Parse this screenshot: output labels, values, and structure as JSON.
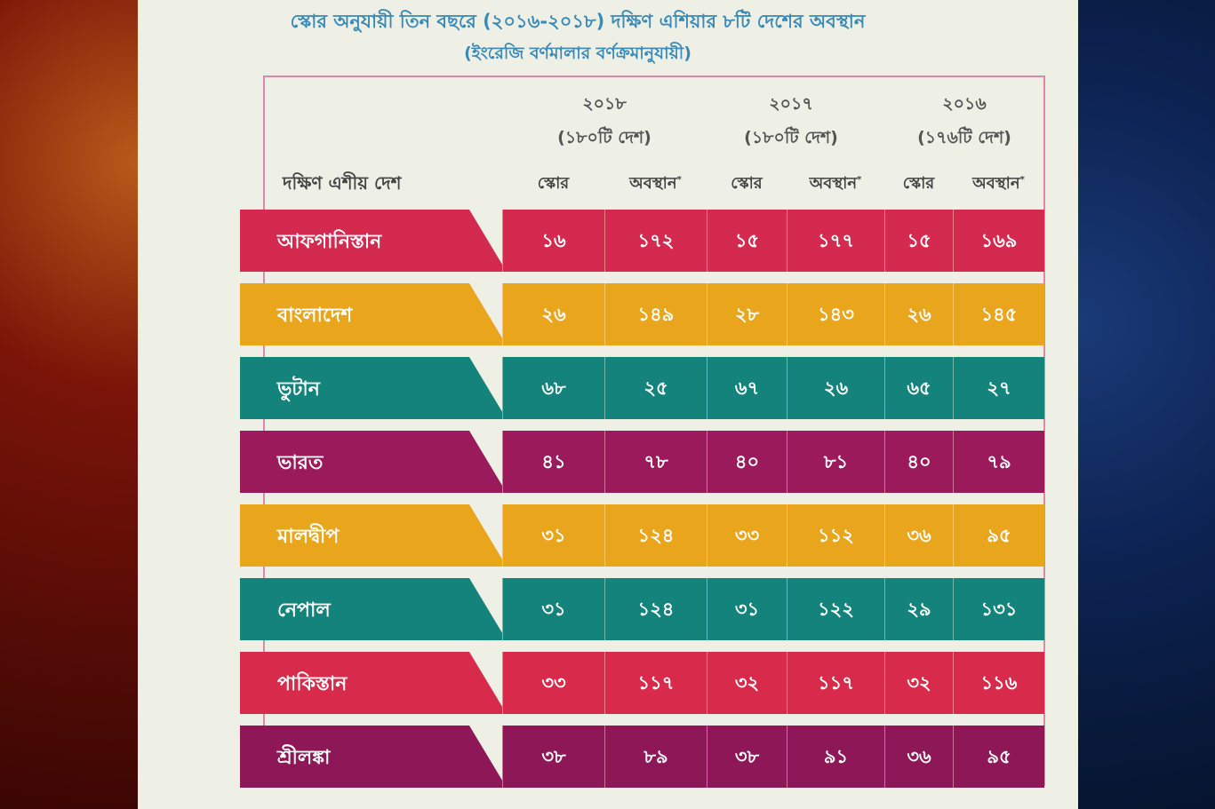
{
  "title": "স্কোর অনুযায়ী তিন বছরে (২০১৬-২০১৮) দক্ষিণ এশিয়ার ৮টি দেশের অবস্থান",
  "subtitle": "(ইংরেজি বর্ণমালার বর্ণক্রমানুযায়ী)",
  "header": {
    "country_label": "দক্ষিণ এশীয় দেশ",
    "years": [
      {
        "year": "২০১৮",
        "countries": "(১৮০টি দেশ)"
      },
      {
        "year": "২০১৭",
        "countries": "(১৮০টি দেশ)"
      },
      {
        "year": "২০১৬",
        "countries": "(১৭৬টি দেশ)"
      }
    ],
    "score_label": "স্কোর",
    "rank_label": "অবস্থান",
    "rank_mark": "*"
  },
  "rows": [
    {
      "country": "আফগানিস্তান",
      "color": "#d42a50",
      "values": [
        "১৬",
        "১৭২",
        "১৫",
        "১৭৭",
        "১৫",
        "১৬৯"
      ]
    },
    {
      "country": "বাংলাদেশ",
      "color": "#e9a61c",
      "values": [
        "২৬",
        "১৪৯",
        "২৮",
        "১৪৩",
        "২৬",
        "১৪৫"
      ]
    },
    {
      "country": "ভুটান",
      "color": "#13837c",
      "values": [
        "৬৮",
        "২৫",
        "৬৭",
        "২৬",
        "৬৫",
        "২৭"
      ]
    },
    {
      "country": "ভারত",
      "color": "#9b1a5c",
      "values": [
        "৪১",
        "৭৮",
        "৪০",
        "৮১",
        "৪০",
        "৭৯"
      ]
    },
    {
      "country": "মালদ্বীপ",
      "color": "#e9a61c",
      "values": [
        "৩১",
        "১২৪",
        "৩৩",
        "১১২",
        "৩৬",
        "৯৫"
      ]
    },
    {
      "country": "নেপাল",
      "color": "#13837c",
      "values": [
        "৩১",
        "১২৪",
        "৩১",
        "১২২",
        "২৯",
        "১৩১"
      ]
    },
    {
      "country": "পাকিস্তান",
      "color": "#d82a4a",
      "values": [
        "৩৩",
        "১১৭",
        "৩২",
        "১১৭",
        "৩২",
        "১১৬"
      ]
    },
    {
      "country": "শ্রীলঙ্কা",
      "color": "#8e1758",
      "values": [
        "৩৮",
        "৮৯",
        "৩৮",
        "৯১",
        "৩৬",
        "৯৫"
      ]
    }
  ]
}
